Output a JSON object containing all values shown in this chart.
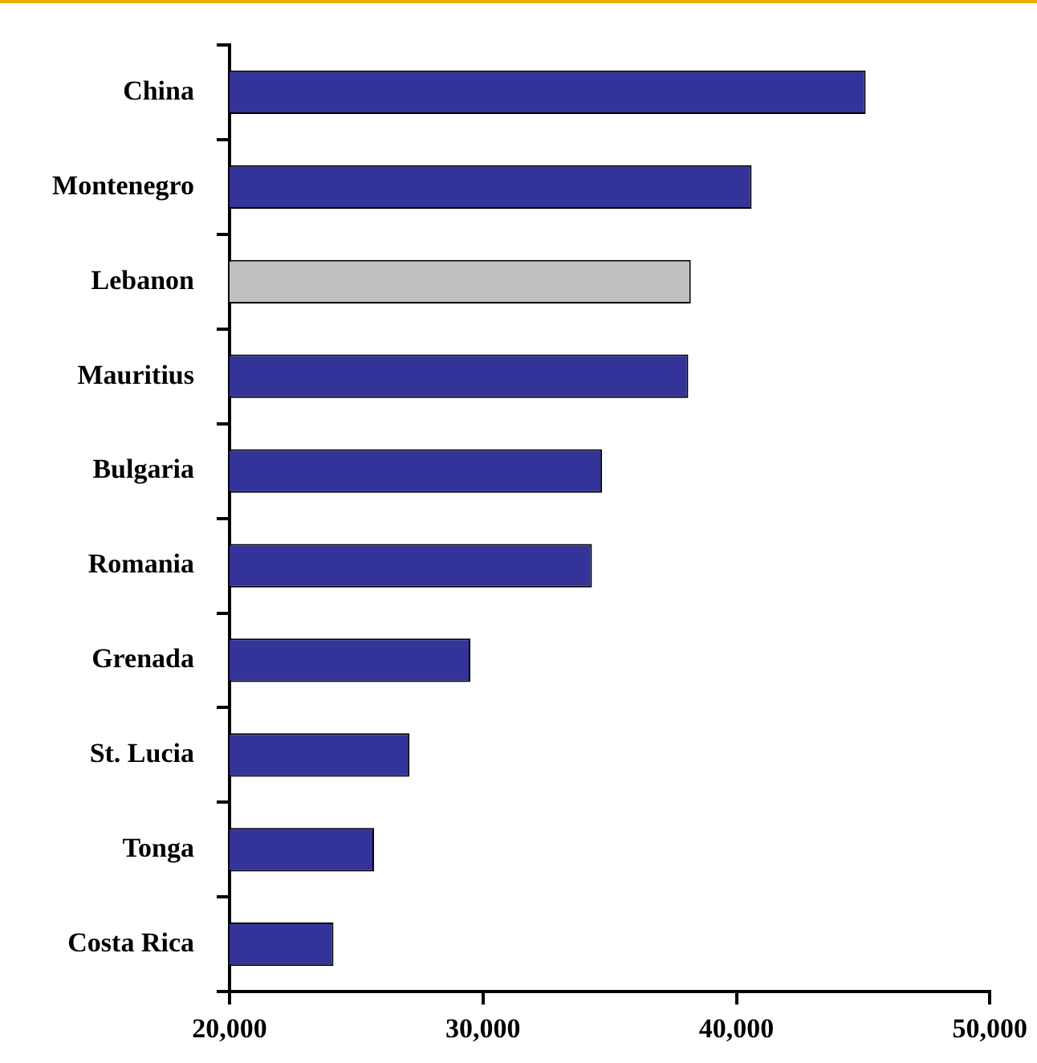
{
  "chart_data": {
    "type": "bar",
    "orientation": "horizontal",
    "categories": [
      "China",
      "Montenegro",
      "Lebanon",
      "Mauritius",
      "Bulgaria",
      "Romania",
      "Grenada",
      "St. Lucia",
      "Tonga",
      "Costa Rica"
    ],
    "values": [
      45100,
      40600,
      38200,
      38100,
      34700,
      34300,
      29500,
      27100,
      25700,
      24100
    ],
    "colors": [
      "#333399",
      "#333399",
      "#c0c0c0",
      "#333399",
      "#333399",
      "#333399",
      "#333399",
      "#333399",
      "#333399",
      "#333399"
    ],
    "xlim": [
      20000,
      50000
    ],
    "xticks": [
      {
        "value": 20000,
        "label": "20,000"
      },
      {
        "value": 30000,
        "label": "30,000"
      },
      {
        "value": 40000,
        "label": "40,000"
      },
      {
        "value": 50000,
        "label": "50,000"
      }
    ],
    "grid": false,
    "legend": false
  }
}
